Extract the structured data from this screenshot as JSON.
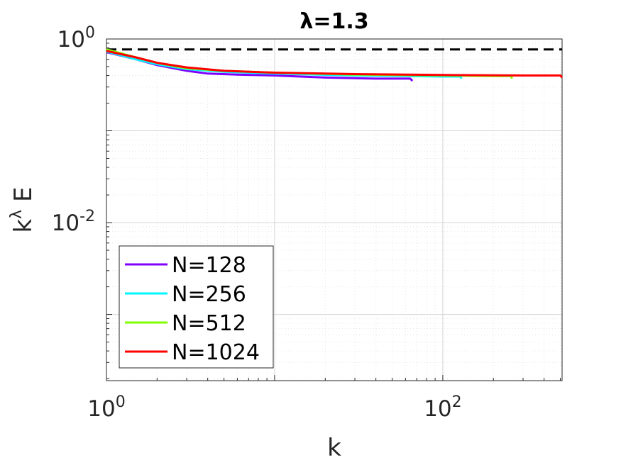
{
  "chart_data": {
    "type": "line",
    "title": "λ=1.3",
    "xlabel": "k",
    "ylabel": "k^λ E",
    "ylabel_base": "k",
    "ylabel_sup": "λ",
    "ylabel_rest": " E",
    "xscale": "log",
    "yscale": "log",
    "xlim": [
      1,
      512
    ],
    "ylim": [
      0.00019,
      1.0
    ],
    "grid": true,
    "legend_position": "bottom-left",
    "x_ticks": [
      {
        "base": "10",
        "exp": "0",
        "value": 1
      },
      {
        "base": "10",
        "exp": "2",
        "value": 100
      }
    ],
    "y_ticks": [
      {
        "base": "10",
        "exp": "0",
        "value": 1
      },
      {
        "base": "10",
        "exp": "-2",
        "value": 0.01
      }
    ],
    "reference_line": {
      "y": 0.77,
      "style": "dashed",
      "color": "#000000"
    },
    "series": [
      {
        "name": "N=128",
        "color": "#7F00FF",
        "points": [
          [
            1,
            0.72
          ],
          [
            1.5,
            0.6
          ],
          [
            2,
            0.52
          ],
          [
            3,
            0.45
          ],
          [
            4,
            0.42
          ],
          [
            6,
            0.41
          ],
          [
            10,
            0.4
          ],
          [
            20,
            0.38
          ],
          [
            40,
            0.37
          ],
          [
            64,
            0.37
          ],
          [
            66,
            0.35
          ]
        ]
      },
      {
        "name": "N=256",
        "color": "#00F5FF",
        "points": [
          [
            1,
            0.73
          ],
          [
            1.5,
            0.6
          ],
          [
            2,
            0.53
          ],
          [
            3,
            0.47
          ],
          [
            5,
            0.44
          ],
          [
            10,
            0.42
          ],
          [
            30,
            0.4
          ],
          [
            60,
            0.395
          ],
          [
            100,
            0.39
          ],
          [
            128,
            0.39
          ],
          [
            129,
            0.37
          ]
        ]
      },
      {
        "name": "N=512",
        "color": "#80FF00",
        "points": [
          [
            1,
            0.77
          ],
          [
            1.5,
            0.63
          ],
          [
            2,
            0.55
          ],
          [
            3,
            0.48
          ],
          [
            5,
            0.45
          ],
          [
            10,
            0.43
          ],
          [
            30,
            0.41
          ],
          [
            100,
            0.4
          ],
          [
            200,
            0.395
          ],
          [
            256,
            0.395
          ],
          [
            257,
            0.37
          ]
        ]
      },
      {
        "name": "N=1024",
        "color": "#FF0000",
        "points": [
          [
            1,
            0.74
          ],
          [
            1.5,
            0.63
          ],
          [
            2,
            0.55
          ],
          [
            3,
            0.49
          ],
          [
            5,
            0.45
          ],
          [
            10,
            0.43
          ],
          [
            30,
            0.415
          ],
          [
            100,
            0.405
          ],
          [
            300,
            0.4
          ],
          [
            500,
            0.4
          ],
          [
            512,
            0.38
          ]
        ]
      }
    ]
  }
}
